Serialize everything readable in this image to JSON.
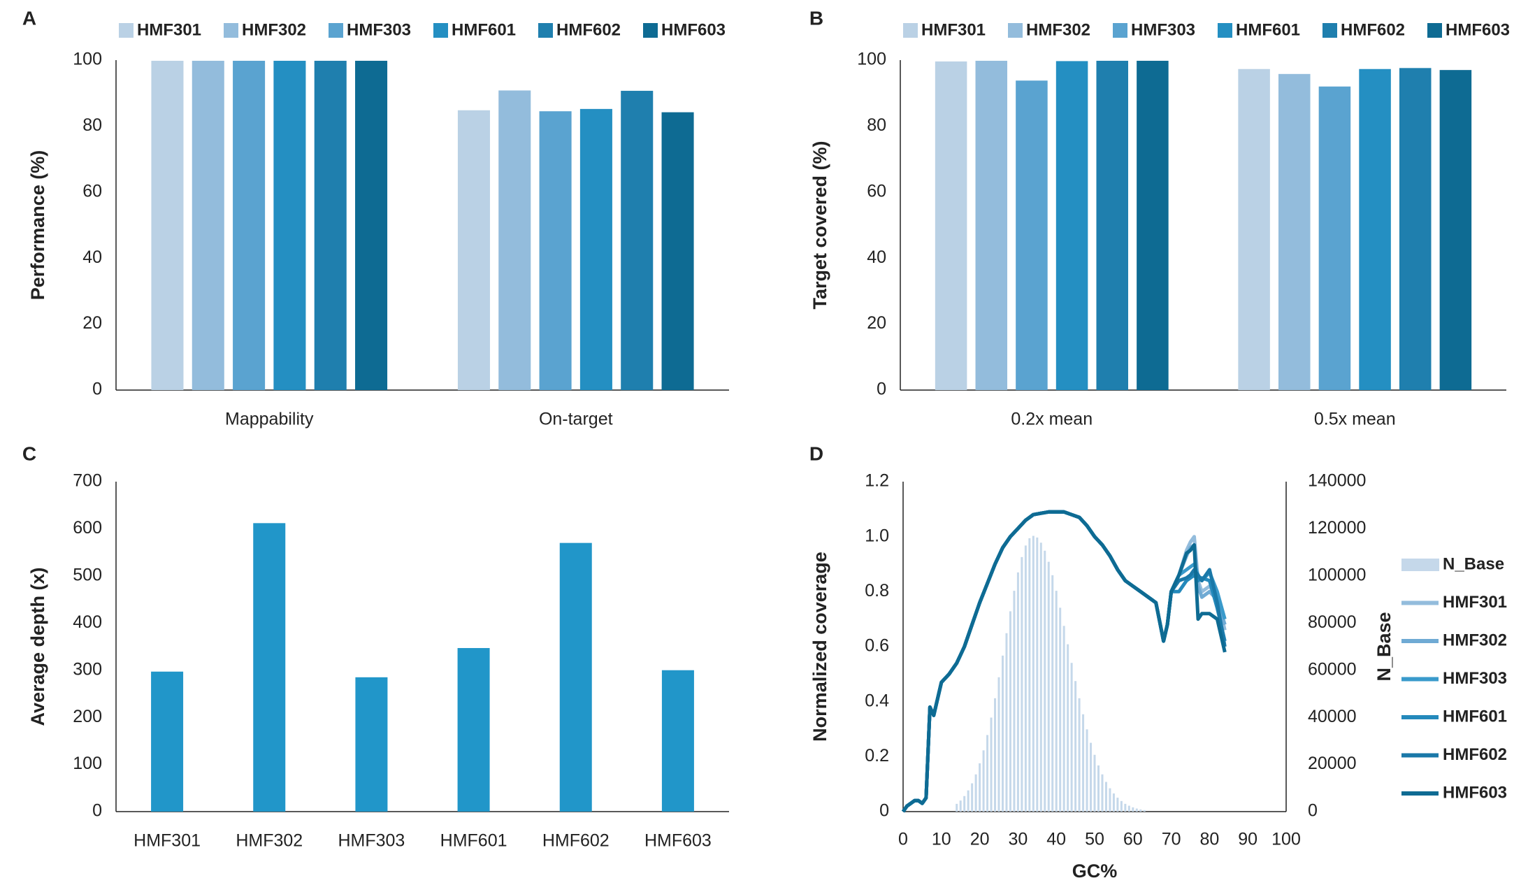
{
  "chart_data": [
    {
      "type": "bar",
      "panel": "A",
      "y_label": "Performance (%)",
      "legend": "top",
      "categories": [
        "Mappability",
        "On-target"
      ],
      "ylim": [
        0,
        100
      ],
      "yticks": [
        0,
        20,
        40,
        60,
        80,
        100
      ],
      "series": [
        {
          "name": "HMF301",
          "color": "#bad1e5",
          "values": [
            99.8,
            84.8
          ]
        },
        {
          "name": "HMF302",
          "color": "#93bcdc",
          "values": [
            99.8,
            90.8
          ]
        },
        {
          "name": "HMF303",
          "color": "#5aa3d0",
          "values": [
            99.8,
            84.5
          ]
        },
        {
          "name": "HMF601",
          "color": "#248fc2",
          "values": [
            99.8,
            85.2
          ]
        },
        {
          "name": "HMF602",
          "color": "#1f7fae",
          "values": [
            99.8,
            90.7
          ]
        },
        {
          "name": "HMF603",
          "color": "#0e6b93",
          "values": [
            99.8,
            84.2
          ]
        }
      ]
    },
    {
      "type": "bar",
      "panel": "B",
      "y_label": "Target covered (%)",
      "legend": "top",
      "categories": [
        "0.2x mean",
        "0.5x mean"
      ],
      "ylim": [
        0,
        100
      ],
      "yticks": [
        0,
        20,
        40,
        60,
        80,
        100
      ],
      "series": [
        {
          "name": "HMF301",
          "color": "#bad1e5",
          "values": [
            99.6,
            97.3
          ]
        },
        {
          "name": "HMF302",
          "color": "#93bcdc",
          "values": [
            99.8,
            95.8
          ]
        },
        {
          "name": "HMF303",
          "color": "#5aa3d0",
          "values": [
            93.8,
            92.0
          ]
        },
        {
          "name": "HMF601",
          "color": "#248fc2",
          "values": [
            99.7,
            97.3
          ]
        },
        {
          "name": "HMF602",
          "color": "#1f7fae",
          "values": [
            99.8,
            97.6
          ]
        },
        {
          "name": "HMF603",
          "color": "#0e6b93",
          "values": [
            99.8,
            97.0
          ]
        }
      ]
    },
    {
      "type": "bar",
      "panel": "C",
      "y_label": "Average depth (x)",
      "color": "#2196c9",
      "categories": [
        "HMF301",
        "HMF302",
        "HMF303",
        "HMF601",
        "HMF602",
        "HMF603"
      ],
      "values": [
        297,
        612,
        285,
        347,
        570,
        300
      ],
      "ylim": [
        0,
        700
      ],
      "yticks": [
        0,
        100,
        200,
        300,
        400,
        500,
        600,
        700
      ]
    },
    {
      "type": "line",
      "panel": "D",
      "x_label": "GC%",
      "y_label": "Normalized coverage",
      "y2_label": "N_Base",
      "legend": "right",
      "xlim": [
        0,
        100
      ],
      "xticks": [
        0,
        10,
        20,
        30,
        40,
        50,
        60,
        70,
        80,
        90,
        100
      ],
      "ylim": [
        0,
        1.2
      ],
      "yticks": [
        0,
        0.2,
        0.4,
        0.6,
        0.8,
        {
          "value": 1,
          "label": "1.0"
        },
        1.2
      ],
      "y2lim": [
        0,
        140000
      ],
      "y2ticks": [
        0,
        20000,
        40000,
        60000,
        80000,
        100000,
        120000,
        140000
      ],
      "x": [
        0,
        1,
        2,
        3,
        4,
        5,
        6,
        7,
        8,
        10,
        12,
        14,
        16,
        18,
        20,
        22,
        24,
        26,
        28,
        30,
        32,
        34,
        36,
        38,
        40,
        42,
        44,
        46,
        48,
        50,
        52,
        54,
        56,
        58,
        60,
        62,
        64,
        66,
        68,
        69,
        70,
        72,
        74,
        75,
        76,
        77,
        78,
        80,
        82,
        84
      ],
      "series": [
        {
          "name": "N_Base",
          "color": "#c5d8ea",
          "axis": "y2",
          "style": "bar",
          "x": [
            14,
            15,
            16,
            17,
            18,
            19,
            20,
            21,
            22,
            23,
            24,
            25,
            26,
            27,
            28,
            29,
            30,
            31,
            32,
            33,
            34,
            35,
            36,
            37,
            38,
            39,
            40,
            41,
            42,
            43,
            44,
            45,
            46,
            47,
            48,
            49,
            50,
            51,
            52,
            53,
            54,
            55,
            56,
            57,
            58,
            59,
            60,
            61,
            62,
            63
          ],
          "values": [
            3300,
            4700,
            6600,
            9000,
            12000,
            15800,
            20500,
            26000,
            32500,
            39900,
            48100,
            57000,
            66200,
            75700,
            85000,
            93700,
            101500,
            108000,
            112900,
            116000,
            117000,
            116300,
            114100,
            110700,
            106000,
            100300,
            93700,
            86500,
            78800,
            71000,
            63100,
            55400,
            48100,
            41300,
            34900,
            29200,
            24100,
            19600,
            15800,
            12600,
            9900,
            7700,
            5900,
            4500,
            3300,
            2500,
            1800,
            1300,
            900,
            650
          ]
        },
        {
          "name": "HMF301",
          "color": "#93bcdc",
          "values": [
            0,
            0.02,
            0.03,
            0.04,
            0.04,
            0.03,
            0.05,
            0.38,
            0.35,
            0.47,
            0.5,
            0.54,
            0.6,
            0.68,
            0.76,
            0.83,
            0.9,
            0.96,
            1.0,
            1.03,
            1.06,
            1.08,
            1.085,
            1.09,
            1.09,
            1.09,
            1.08,
            1.07,
            1.04,
            1.0,
            0.97,
            0.93,
            0.88,
            0.84,
            0.82,
            0.8,
            0.78,
            0.76,
            0.62,
            0.68,
            0.8,
            0.86,
            0.95,
            0.98,
            1.0,
            0.84,
            0.8,
            0.82,
            0.78,
            0.66
          ]
        },
        {
          "name": "HMF302",
          "color": "#6faad4",
          "values": [
            0,
            0.02,
            0.03,
            0.04,
            0.04,
            0.03,
            0.05,
            0.38,
            0.35,
            0.47,
            0.5,
            0.54,
            0.6,
            0.68,
            0.76,
            0.83,
            0.9,
            0.96,
            1.0,
            1.03,
            1.06,
            1.08,
            1.085,
            1.09,
            1.09,
            1.09,
            1.08,
            1.07,
            1.04,
            1.0,
            0.97,
            0.93,
            0.88,
            0.84,
            0.82,
            0.8,
            0.78,
            0.76,
            0.62,
            0.68,
            0.8,
            0.86,
            0.93,
            0.96,
            0.97,
            0.82,
            0.78,
            0.8,
            0.77,
            0.68
          ]
        },
        {
          "name": "HMF303",
          "color": "#3a9acb",
          "values": [
            0,
            0.02,
            0.03,
            0.04,
            0.04,
            0.03,
            0.05,
            0.38,
            0.35,
            0.47,
            0.5,
            0.54,
            0.6,
            0.68,
            0.76,
            0.83,
            0.9,
            0.96,
            1.0,
            1.03,
            1.06,
            1.08,
            1.085,
            1.09,
            1.09,
            1.09,
            1.08,
            1.07,
            1.04,
            1.0,
            0.97,
            0.93,
            0.88,
            0.84,
            0.82,
            0.8,
            0.78,
            0.76,
            0.62,
            0.68,
            0.8,
            0.86,
            0.88,
            0.89,
            0.9,
            0.86,
            0.84,
            0.87,
            0.8,
            0.7
          ]
        },
        {
          "name": "HMF601",
          "color": "#2489bb",
          "values": [
            0,
            0.02,
            0.03,
            0.04,
            0.04,
            0.03,
            0.05,
            0.38,
            0.35,
            0.47,
            0.5,
            0.54,
            0.6,
            0.68,
            0.76,
            0.83,
            0.9,
            0.96,
            1.0,
            1.03,
            1.06,
            1.08,
            1.085,
            1.09,
            1.09,
            1.09,
            1.08,
            1.07,
            1.04,
            1.0,
            0.97,
            0.93,
            0.88,
            0.84,
            0.82,
            0.8,
            0.78,
            0.76,
            0.62,
            0.68,
            0.8,
            0.8,
            0.84,
            0.85,
            0.86,
            0.84,
            0.85,
            0.84,
            0.74,
            0.62
          ]
        },
        {
          "name": "HMF602",
          "color": "#1a78a8",
          "values": [
            0,
            0.02,
            0.03,
            0.04,
            0.04,
            0.03,
            0.05,
            0.38,
            0.35,
            0.47,
            0.5,
            0.54,
            0.6,
            0.68,
            0.76,
            0.83,
            0.9,
            0.96,
            1.0,
            1.03,
            1.06,
            1.08,
            1.085,
            1.09,
            1.09,
            1.09,
            1.08,
            1.07,
            1.04,
            1.0,
            0.97,
            0.93,
            0.88,
            0.84,
            0.82,
            0.8,
            0.78,
            0.76,
            0.62,
            0.68,
            0.8,
            0.84,
            0.85,
            0.86,
            0.88,
            0.86,
            0.84,
            0.88,
            0.76,
            0.6
          ]
        },
        {
          "name": "HMF603",
          "color": "#0e6b93",
          "values": [
            0,
            0.02,
            0.03,
            0.04,
            0.04,
            0.03,
            0.05,
            0.38,
            0.35,
            0.47,
            0.5,
            0.54,
            0.6,
            0.68,
            0.76,
            0.83,
            0.9,
            0.96,
            1.0,
            1.03,
            1.06,
            1.08,
            1.085,
            1.09,
            1.09,
            1.09,
            1.08,
            1.07,
            1.04,
            1.0,
            0.97,
            0.93,
            0.88,
            0.84,
            0.82,
            0.8,
            0.78,
            0.76,
            0.62,
            0.68,
            0.8,
            0.86,
            0.94,
            0.95,
            0.97,
            0.7,
            0.72,
            0.72,
            0.7,
            0.58
          ]
        }
      ]
    }
  ]
}
